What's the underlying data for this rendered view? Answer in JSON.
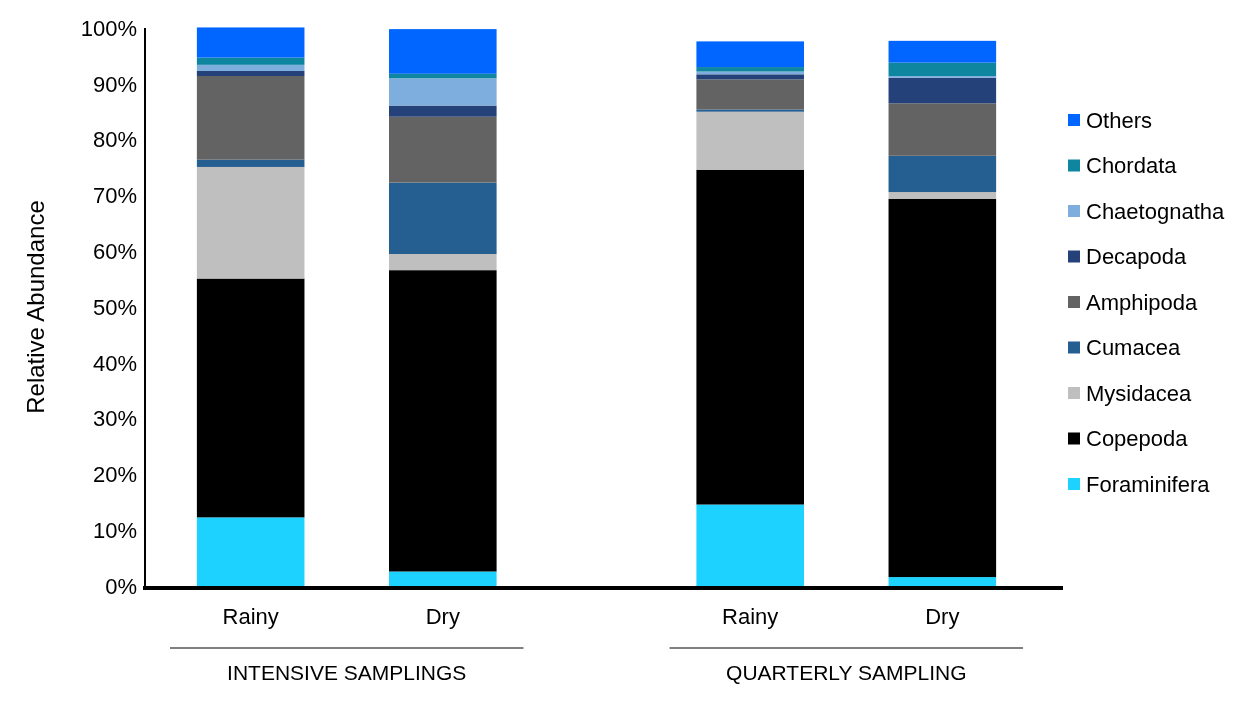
{
  "chart_data": {
    "type": "bar",
    "stacked": true,
    "ylabel": "Relative Abundance",
    "categories": [
      "Rainy",
      "Dry",
      "Rainy",
      "Dry"
    ],
    "annotations": [
      "INTENSIVE SAMPLINGS",
      "QUARTERLY SAMPLING"
    ],
    "ylim": [
      0,
      100
    ],
    "yticks": [
      {
        "value": 0,
        "label": "0%"
      },
      {
        "value": 10,
        "label": "10%"
      },
      {
        "value": 20,
        "label": "20%"
      },
      {
        "value": 30,
        "label": "30%"
      },
      {
        "value": 40,
        "label": "40%"
      },
      {
        "value": 50,
        "label": "50%"
      },
      {
        "value": 60,
        "label": "60%"
      },
      {
        "value": 70,
        "label": "70%"
      },
      {
        "value": 80,
        "label": "80%"
      },
      {
        "value": 90,
        "label": "90%"
      },
      {
        "value": 100,
        "label": "100%"
      }
    ],
    "legend": "right",
    "series": [
      {
        "name": "Foraminifera",
        "color": "#1ed2ff",
        "values": [
          12.3,
          2.6,
          14.6,
          1.6
        ]
      },
      {
        "name": "Copepoda",
        "color": "#000000",
        "values": [
          42.8,
          54.0,
          60.0,
          67.8
        ]
      },
      {
        "name": "Mysidacea",
        "color": "#bfbfbf",
        "values": [
          20.0,
          2.9,
          10.4,
          1.2
        ]
      },
      {
        "name": "Cumacea",
        "color": "#255f91",
        "values": [
          1.3,
          12.8,
          0.4,
          6.5
        ]
      },
      {
        "name": "Amphipoda",
        "color": "#636363",
        "values": [
          15.0,
          11.8,
          5.4,
          9.4
        ]
      },
      {
        "name": "Decapoda",
        "color": "#24417a",
        "values": [
          0.9,
          2.0,
          0.9,
          4.6
        ]
      },
      {
        "name": "Chaetognatha",
        "color": "#7eaedd",
        "values": [
          1.1,
          4.9,
          0.5,
          0.3
        ]
      },
      {
        "name": "Chordata",
        "color": "#0e86a0",
        "values": [
          1.3,
          0.8,
          0.8,
          2.4
        ]
      },
      {
        "name": "Others",
        "color": "#0066ff",
        "values": [
          5.4,
          8.0,
          4.6,
          3.9
        ]
      }
    ]
  }
}
